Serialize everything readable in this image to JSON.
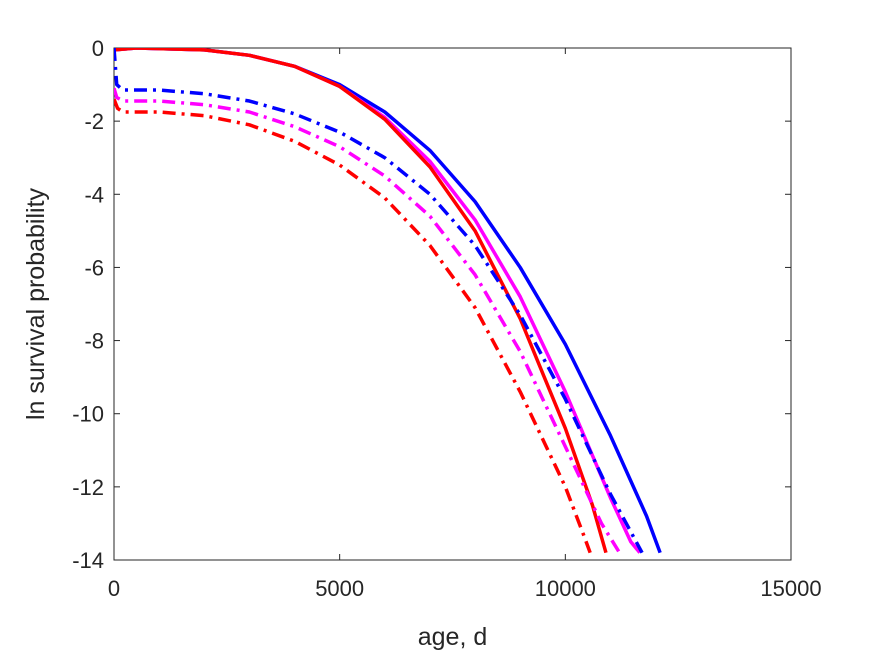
{
  "chart_data": {
    "type": "line",
    "title": "",
    "xlabel": "age, d",
    "ylabel": "ln survival probability",
    "xlim": [
      0,
      15000
    ],
    "ylim": [
      -14,
      0
    ],
    "xticks": [
      0,
      5000,
      10000,
      15000
    ],
    "xtick_labels": [
      "0",
      "5000",
      "10000",
      "15000"
    ],
    "yticks": [
      0,
      -2,
      -4,
      -6,
      -8,
      -10,
      -12,
      -14
    ],
    "ytick_labels": [
      "0",
      "-2",
      "-4",
      "-6",
      "-8",
      "-10",
      "-12",
      "-14"
    ],
    "grid": false,
    "legend": "none",
    "series": [
      {
        "color": "#0000ff",
        "dash": "solid",
        "points": [
          [
            0,
            -0.05
          ],
          [
            500,
            0
          ],
          [
            2000,
            -0.05
          ],
          [
            3000,
            -0.2
          ],
          [
            4000,
            -0.5
          ],
          [
            5000,
            -1.0
          ],
          [
            6000,
            -1.75
          ],
          [
            7000,
            -2.8
          ],
          [
            8000,
            -4.2
          ],
          [
            9000,
            -6.0
          ],
          [
            10000,
            -8.1
          ],
          [
            11000,
            -10.6
          ],
          [
            11800,
            -12.8
          ],
          [
            12100,
            -13.8
          ]
        ]
      },
      {
        "color": "#ff00ff",
        "dash": "solid",
        "points": [
          [
            0,
            -0.05
          ],
          [
            500,
            0
          ],
          [
            2000,
            -0.05
          ],
          [
            3000,
            -0.2
          ],
          [
            4000,
            -0.5
          ],
          [
            5000,
            -1.05
          ],
          [
            6000,
            -1.9
          ],
          [
            7000,
            -3.1
          ],
          [
            8000,
            -4.7
          ],
          [
            9000,
            -6.8
          ],
          [
            10000,
            -9.4
          ],
          [
            11000,
            -12.3
          ],
          [
            11450,
            -13.5
          ],
          [
            11650,
            -13.8
          ]
        ]
      },
      {
        "color": "#ff0000",
        "dash": "solid",
        "points": [
          [
            0,
            -0.05
          ],
          [
            500,
            0
          ],
          [
            2000,
            -0.05
          ],
          [
            3000,
            -0.2
          ],
          [
            4000,
            -0.5
          ],
          [
            5000,
            -1.05
          ],
          [
            6000,
            -1.95
          ],
          [
            7000,
            -3.25
          ],
          [
            8000,
            -5.0
          ],
          [
            9000,
            -7.4
          ],
          [
            10000,
            -10.4
          ],
          [
            10600,
            -12.5
          ],
          [
            10900,
            -13.8
          ]
        ]
      },
      {
        "color": "#0000ff",
        "dash": "dashdot",
        "points": [
          [
            0,
            0
          ],
          [
            60,
            -1.0
          ],
          [
            200,
            -1.15
          ],
          [
            1000,
            -1.15
          ],
          [
            2000,
            -1.25
          ],
          [
            3000,
            -1.45
          ],
          [
            4000,
            -1.8
          ],
          [
            5000,
            -2.3
          ],
          [
            6000,
            -3.0
          ],
          [
            7000,
            -4.0
          ],
          [
            8000,
            -5.4
          ],
          [
            9000,
            -7.3
          ],
          [
            10000,
            -9.6
          ],
          [
            11000,
            -12.2
          ],
          [
            11700,
            -13.8
          ]
        ]
      },
      {
        "color": "#ff00ff",
        "dash": "dashdot",
        "points": [
          [
            0,
            -1.1
          ],
          [
            60,
            -1.35
          ],
          [
            200,
            -1.45
          ],
          [
            1000,
            -1.45
          ],
          [
            2000,
            -1.55
          ],
          [
            3000,
            -1.75
          ],
          [
            4000,
            -2.15
          ],
          [
            5000,
            -2.7
          ],
          [
            6000,
            -3.5
          ],
          [
            7000,
            -4.6
          ],
          [
            8000,
            -6.2
          ],
          [
            9000,
            -8.3
          ],
          [
            10000,
            -10.9
          ],
          [
            10800,
            -13.0
          ],
          [
            11200,
            -13.8
          ]
        ]
      },
      {
        "color": "#ff0000",
        "dash": "dashdot",
        "points": [
          [
            0,
            -1.4
          ],
          [
            80,
            -1.65
          ],
          [
            200,
            -1.75
          ],
          [
            1000,
            -1.75
          ],
          [
            2000,
            -1.85
          ],
          [
            3000,
            -2.1
          ],
          [
            4000,
            -2.55
          ],
          [
            5000,
            -3.2
          ],
          [
            6000,
            -4.1
          ],
          [
            7000,
            -5.4
          ],
          [
            8000,
            -7.1
          ],
          [
            9000,
            -9.4
          ],
          [
            10000,
            -12.0
          ],
          [
            10400,
            -13.3
          ],
          [
            10550,
            -13.8
          ]
        ]
      }
    ]
  }
}
